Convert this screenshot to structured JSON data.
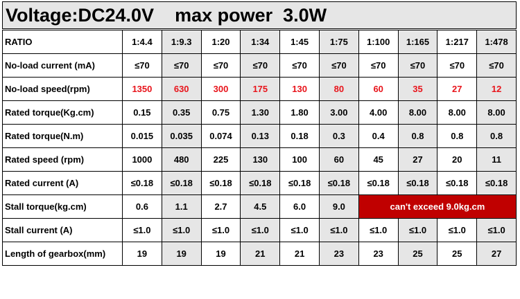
{
  "title": "Voltage:DC24.0V    max power  3.0W",
  "table": {
    "rows": [
      {
        "label": "RATIO",
        "cells": [
          "1:4.4",
          "1:9.3",
          "1:20",
          "1:34",
          "1:45",
          "1:75",
          "1:100",
          "1:165",
          "1:217",
          "1:478"
        ]
      },
      {
        "label": "No-load current  (mA)",
        "cells": [
          "≤70",
          "≤70",
          "≤70",
          "≤70",
          "≤70",
          "≤70",
          "≤70",
          "≤70",
          "≤70",
          "≤70"
        ]
      },
      {
        "label": "No-load speed(rpm)",
        "color": "#e8141b",
        "cells": [
          "1350",
          "630",
          "300",
          "175",
          "130",
          "80",
          "60",
          "35",
          "27",
          "12"
        ]
      },
      {
        "label": "Rated torque(Kg.cm)",
        "cells": [
          "0.15",
          "0.35",
          "0.75",
          "1.30",
          "1.80",
          "3.00",
          "4.00",
          "8.00",
          "8.00",
          "8.00"
        ]
      },
      {
        "label": "Rated torque(N.m)",
        "cells": [
          "0.015",
          "0.035",
          "0.074",
          "0.13",
          "0.18",
          "0.3",
          "0.4",
          "0.8",
          "0.8",
          "0.8"
        ]
      },
      {
        "label": "Rated speed  (rpm)",
        "cells": [
          "1000",
          "480",
          "225",
          "130",
          "100",
          "60",
          "45",
          "27",
          "20",
          "11"
        ]
      },
      {
        "label": "Rated current  (A)",
        "cells": [
          "≤0.18",
          "≤0.18",
          "≤0.18",
          "≤0.18",
          "≤0.18",
          "≤0.18",
          "≤0.18",
          "≤0.18",
          "≤0.18",
          "≤0.18"
        ]
      },
      {
        "label": "Stall torque(kg.cm)",
        "cells": [
          "0.6",
          "1.1",
          "2.7",
          "4.5",
          "6.0",
          "9.0"
        ],
        "note": "can't exceed 9.0kg.cm",
        "note_color": "#c00000"
      },
      {
        "label": "Stall current  (A)",
        "cells": [
          "≤1.0",
          "≤1.0",
          "≤1.0",
          "≤1.0",
          "≤1.0",
          "≤1.0",
          "≤1.0",
          "≤1.0",
          "≤1.0",
          "≤1.0"
        ]
      },
      {
        "label": "Length of gearbox(mm)",
        "cells": [
          "19",
          "19",
          "19",
          "21",
          "21",
          "23",
          "23",
          "25",
          "25",
          "27"
        ]
      }
    ]
  }
}
